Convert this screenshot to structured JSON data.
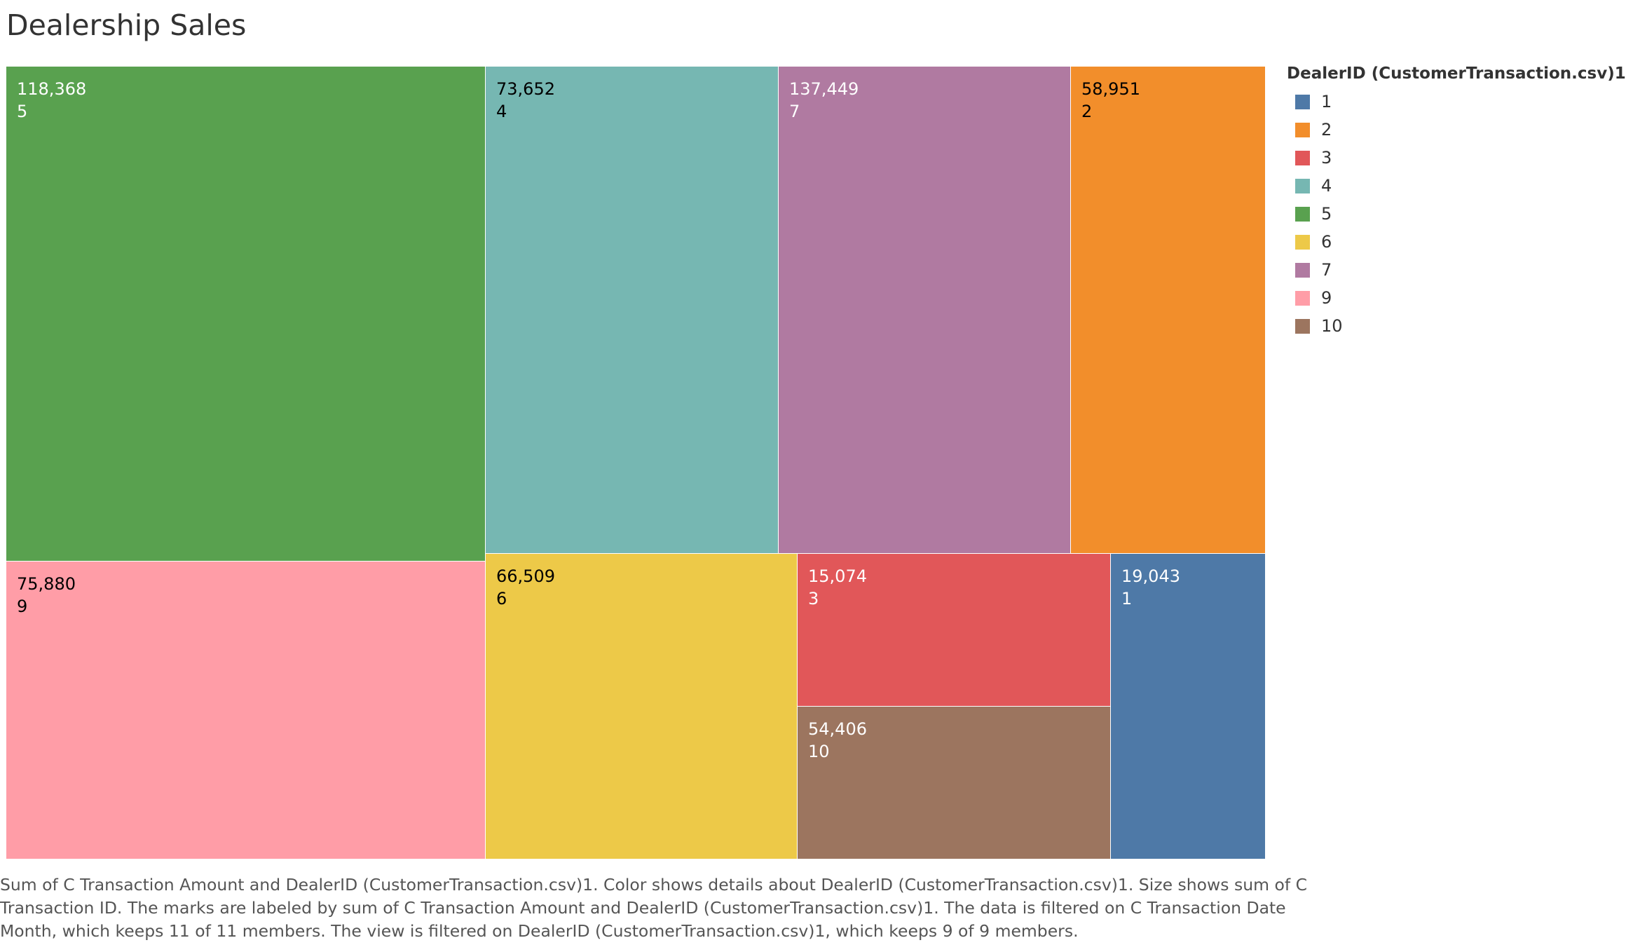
{
  "title": "Dealership Sales",
  "legend": {
    "title": "DealerID (CustomerTransaction.csv)1",
    "items": [
      {
        "label": "1",
        "color": "#4e79a7"
      },
      {
        "label": "2",
        "color": "#f28e2b"
      },
      {
        "label": "3",
        "color": "#e15759"
      },
      {
        "label": "4",
        "color": "#76b7b2"
      },
      {
        "label": "5",
        "color": "#59a14f"
      },
      {
        "label": "6",
        "color": "#edc948"
      },
      {
        "label": "7",
        "color": "#b07aa1"
      },
      {
        "label": "9",
        "color": "#ff9da7"
      },
      {
        "label": "10",
        "color": "#9c755f"
      }
    ]
  },
  "caption": {
    "line1": "Sum of C Transaction Amount and DealerID (CustomerTransaction.csv)1.  Color shows details about DealerID (CustomerTransaction.csv)1.  Size shows sum of C",
    "line2": "Transaction ID.  The marks are labeled by sum of C Transaction Amount and DealerID (CustomerTransaction.csv)1. The data is filtered on C Transaction Date",
    "line3": "Month, which keeps 11 of 11 members. The view is filtered on DealerID (CustomerTransaction.csv)1, which keeps 9 of 9 members."
  },
  "chart_data": {
    "type": "treemap",
    "title": "Dealership Sales",
    "label_field": "sum of C Transaction Amount",
    "size_field": "sum of C Transaction ID",
    "color_field": "DealerID (CustomerTransaction.csv)1",
    "items": [
      {
        "dealer": "5",
        "amount": "118,368",
        "color": "#59a14f",
        "label_color": "#ffffff"
      },
      {
        "dealer": "4",
        "amount": "73,652",
        "color": "#76b7b2",
        "label_color": "#000000"
      },
      {
        "dealer": "7",
        "amount": "137,449",
        "color": "#b07aa1",
        "label_color": "#ffffff"
      },
      {
        "dealer": "2",
        "amount": "58,951",
        "color": "#f28e2b",
        "label_color": "#000000"
      },
      {
        "dealer": "9",
        "amount": "75,880",
        "color": "#ff9da7",
        "label_color": "#000000"
      },
      {
        "dealer": "6",
        "amount": "66,509",
        "color": "#edc948",
        "label_color": "#000000"
      },
      {
        "dealer": "3",
        "amount": "15,074",
        "color": "#e15759",
        "label_color": "#ffffff"
      },
      {
        "dealer": "10",
        "amount": "54,406",
        "color": "#9c755f",
        "label_color": "#ffffff"
      },
      {
        "dealer": "1",
        "amount": "19,043",
        "color": "#4e79a7",
        "label_color": "#ffffff"
      }
    ]
  }
}
